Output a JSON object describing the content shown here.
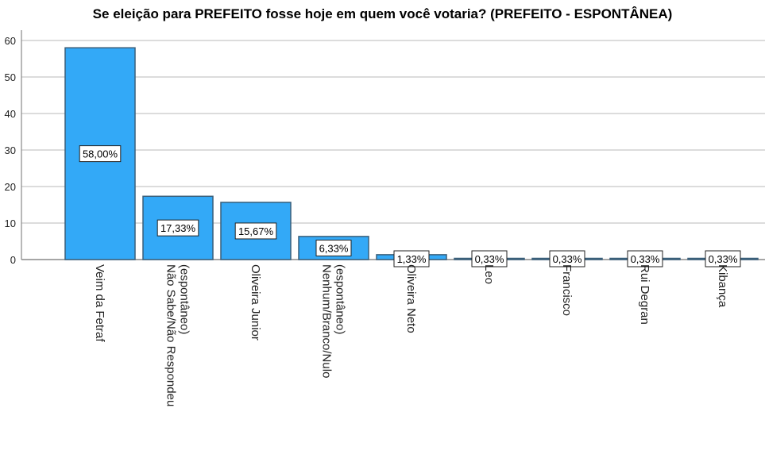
{
  "chart_data": {
    "type": "bar",
    "title": "Se eleição para PREFEITO fosse hoje em quem você votaria? (PREFEITO - ESPONTÂNEA)",
    "xlabel": "",
    "ylabel": "",
    "ylim": [
      0,
      62
    ],
    "yticks": [
      0,
      10,
      20,
      30,
      40,
      50,
      60
    ],
    "grid": true,
    "categories": [
      [
        "Veim da Fetraf"
      ],
      [
        "Não Sabe/Não Respondeu",
        "(espontâneo)"
      ],
      [
        "Oliveira Junior"
      ],
      [
        "Nenhum/Branco/Nulo",
        "(espontâneo)"
      ],
      [
        "Oliveira Neto"
      ],
      [
        "Leo"
      ],
      [
        "Francisco"
      ],
      [
        "Rui Degran"
      ],
      [
        "Kibança"
      ]
    ],
    "values": [
      58.0,
      17.33,
      15.67,
      6.33,
      1.33,
      0.33,
      0.33,
      0.33,
      0.33
    ],
    "data_labels": [
      "58,00%",
      "17,33%",
      "15,67%",
      "6,33%",
      "1,33%",
      "0,33%",
      "0,33%",
      "0,33%",
      "0,33%"
    ],
    "colors": {
      "bar": "#33a9f7",
      "bar_edge": "#3a5f7a",
      "grid": "#c8c8c8",
      "axis": "#888888"
    }
  }
}
